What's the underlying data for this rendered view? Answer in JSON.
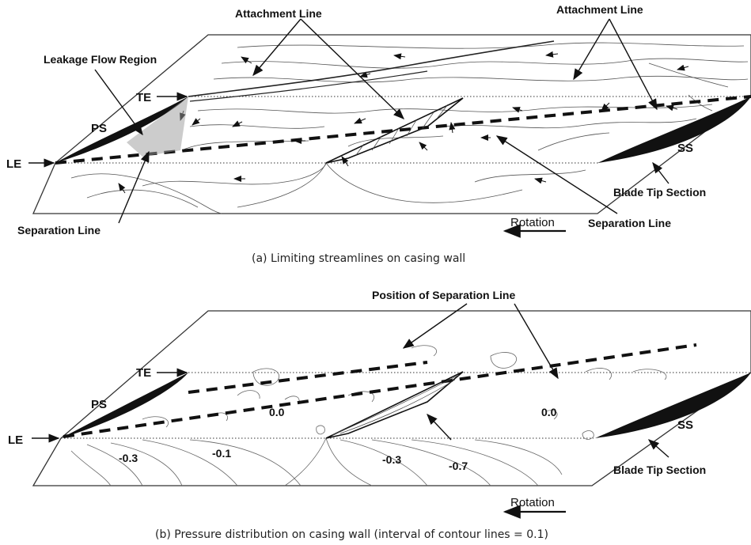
{
  "panel_a": {
    "labels": {
      "attachment_left": "Attachment Line",
      "attachment_right": "Attachment Line",
      "leakage": "Leakage Flow Region",
      "te": "TE",
      "ps": "PS",
      "le": "LE",
      "ss": "SS",
      "blade_tip": "Blade Tip Section",
      "separation_left": "Separation Line",
      "separation_right": "Separation Line",
      "rotation": "Rotation"
    },
    "caption": "(a)  Limiting streamlines on casing wall"
  },
  "panel_b": {
    "labels": {
      "position_sep": "Position of Separation Line",
      "te": "TE",
      "ps": "PS",
      "le": "LE",
      "ss": "SS",
      "blade_tip": "Blade Tip Section",
      "rotation": "Rotation"
    },
    "contour_values": {
      "c1": "0.0",
      "c2": "-0.3",
      "c3": "-0.1",
      "c4": "-0.3",
      "c5": "-0.7",
      "c6": "0.0"
    },
    "caption": "(b)  Pressure distribution on casing wall (interval of contour lines = 0.1)"
  }
}
